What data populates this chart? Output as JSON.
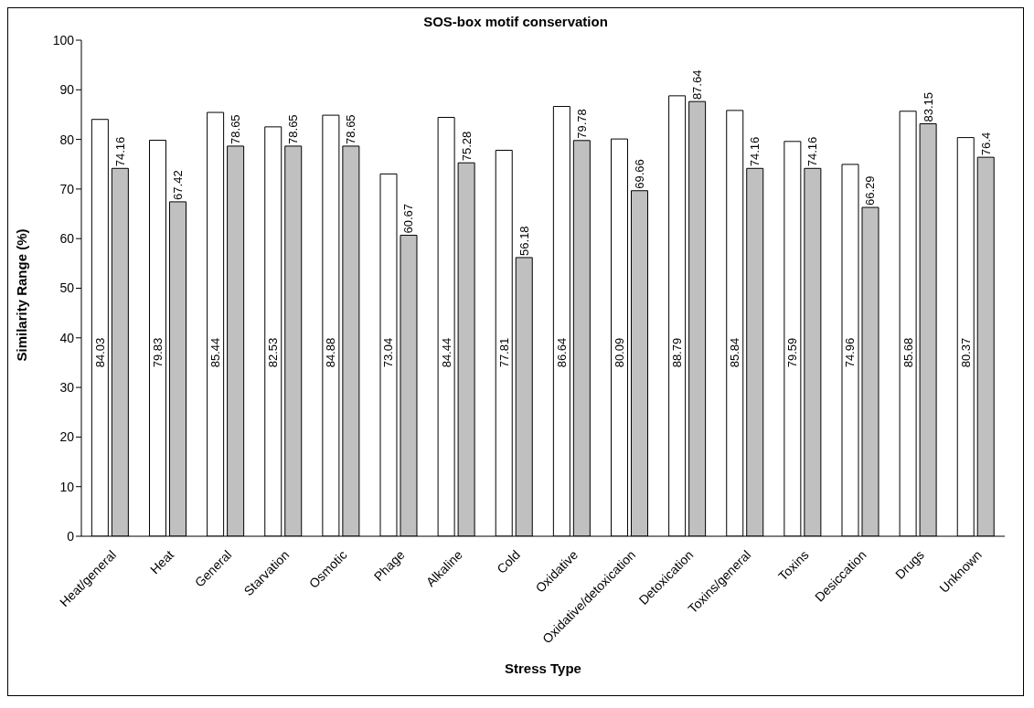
{
  "chart_data": {
    "type": "bar",
    "title": "SOS-box motif conservation",
    "xlabel": "Stress Type",
    "ylabel": "Similarity Range (%)",
    "categories": [
      "Heat/general",
      "Heat",
      "General",
      "Starvation",
      "Osmotic",
      "Phage",
      "Alkaline",
      "Cold",
      "Oxidative",
      "Oxidative/detoxication",
      "Detoxication",
      "Toxins/general",
      "Toxins",
      "Desiccation",
      "Drugs",
      "Unknown"
    ],
    "series": [
      {
        "color": "#ffffff",
        "values": [
          84.03,
          79.83,
          85.44,
          82.53,
          84.88,
          73.04,
          84.44,
          77.81,
          86.64,
          80.09,
          88.79,
          85.84,
          79.59,
          74.96,
          85.68,
          80.37
        ]
      },
      {
        "color": "#c0c0c0",
        "values": [
          74.16,
          67.42,
          78.65,
          78.65,
          78.65,
          60.67,
          75.28,
          56.18,
          79.78,
          69.66,
          87.64,
          74.16,
          74.16,
          66.29,
          83.15,
          76.4
        ]
      }
    ],
    "ylim": [
      0,
      100
    ],
    "yticks": [
      0,
      10,
      20,
      30,
      40,
      50,
      60,
      70,
      80,
      90,
      100
    ],
    "legend": false,
    "data_labels": true
  }
}
